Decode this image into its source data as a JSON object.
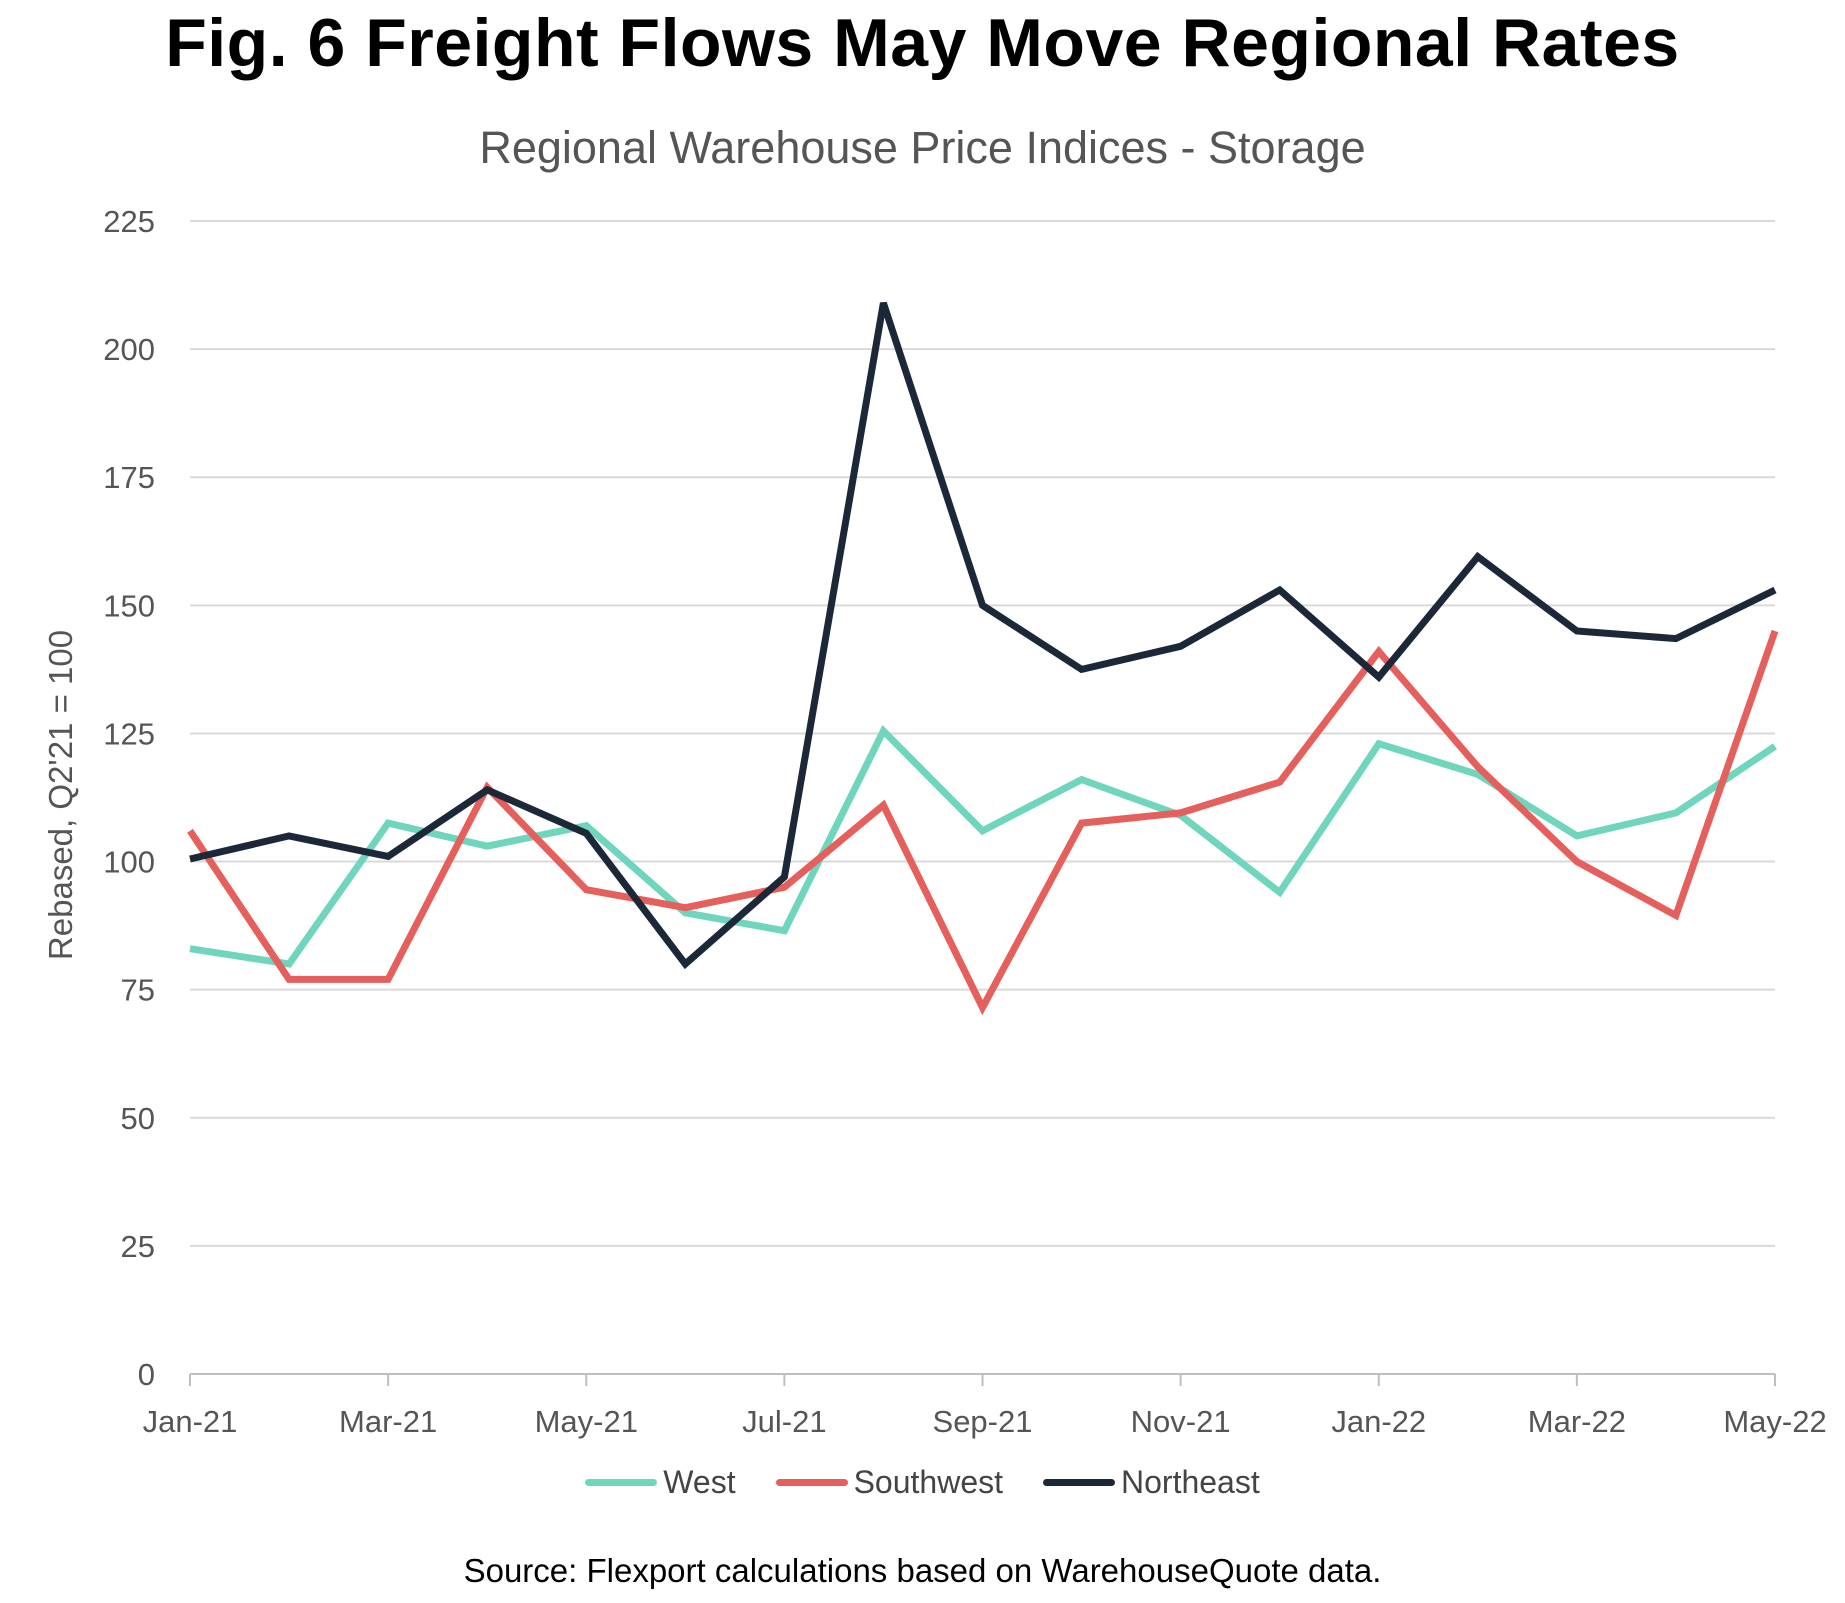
{
  "chart_data": {
    "type": "line",
    "title": "Fig. 6 Freight Flows May Move Regional Rates",
    "subtitle": "Regional Warehouse Price Indices - Storage",
    "xlabel": "",
    "ylabel": "Rebased, Q2'21 = 100",
    "ylim": [
      0,
      225
    ],
    "yticks": [
      0,
      25,
      50,
      75,
      100,
      125,
      150,
      175,
      200,
      225
    ],
    "grid": true,
    "legend_position": "bottom-center",
    "x": [
      "Jan-21",
      "Feb-21",
      "Mar-21",
      "Apr-21",
      "May-21",
      "Jun-21",
      "Jul-21",
      "Aug-21",
      "Sep-21",
      "Oct-21",
      "Nov-21",
      "Dec-21",
      "Jan-22",
      "Feb-22",
      "Mar-22",
      "Apr-22",
      "May-22"
    ],
    "x_tick_labels": [
      "Jan-21",
      "Mar-21",
      "May-21",
      "Jul-21",
      "Sep-21",
      "Nov-21",
      "Jan-22",
      "Mar-22",
      "May-22"
    ],
    "series": [
      {
        "name": "West",
        "color": "#6fd6bd",
        "values": [
          83,
          80,
          107.5,
          103,
          107,
          90,
          86.5,
          125.5,
          106,
          116,
          109,
          94,
          123,
          117,
          105,
          109.5,
          122.5
        ]
      },
      {
        "name": "Southwest",
        "color": "#e5605c",
        "values": [
          106,
          77,
          77,
          114.5,
          94.5,
          91,
          95,
          111,
          71.5,
          107.5,
          109.5,
          115.5,
          141,
          118.5,
          100,
          89.5,
          145
        ]
      },
      {
        "name": "Northeast",
        "color": "#1c2838",
        "values": [
          100.5,
          105,
          101,
          114,
          105.5,
          80,
          97,
          209,
          150,
          137.5,
          142,
          153,
          136,
          159.5,
          145,
          143.5,
          153
        ]
      }
    ]
  },
  "source": "Source: Flexport calculations based on WarehouseQuote data."
}
